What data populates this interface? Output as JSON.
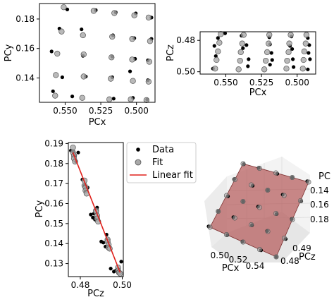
{
  "chart_data": [
    {
      "type": "scatter",
      "xlabel": "PCx",
      "ylabel": "PCy",
      "x_inverted": true,
      "xlim": [
        0.568,
        0.487
      ],
      "ylim": [
        0.1235,
        0.1905
      ],
      "xticks": [
        0.55,
        0.525,
        0.5
      ],
      "xtick_labels": [
        "0.550",
        "0.525",
        "0.500"
      ],
      "yticks": [
        0.14,
        0.16,
        0.18
      ],
      "ytick_labels": [
        "0.14",
        "0.16",
        "0.18"
      ],
      "series": [
        {
          "marker": "black-dot",
          "x": [
            0.5485,
            0.5285,
            0.5145,
            0.5005,
            0.4895,
            0.554,
            0.5385,
            0.5165,
            0.5015,
            0.4895,
            0.5595,
            0.5375,
            0.517,
            0.501,
            0.492,
            0.552,
            0.5355,
            0.517,
            0.5045,
            0.492,
            0.5585,
            0.545,
            0.516,
            0.5025,
            0.4925
          ],
          "y": [
            0.1865,
            0.186,
            0.1845,
            0.1838,
            0.181,
            0.1735,
            0.173,
            0.169,
            0.167,
            0.1665,
            0.158,
            0.155,
            0.1545,
            0.153,
            0.152,
            0.1405,
            0.141,
            0.1405,
            0.1445,
            0.1385,
            0.131,
            0.1275,
            0.126,
            0.1265,
            0.1255
          ]
        },
        {
          "marker": "gray-circle",
          "x": [
            0.551,
            0.53,
            0.5155,
            0.5015,
            0.4915,
            0.5525,
            0.5375,
            0.517,
            0.503,
            0.4905,
            0.5555,
            0.537,
            0.5175,
            0.503,
            0.491,
            0.5565,
            0.537,
            0.518,
            0.5025,
            0.4915,
            0.557,
            0.538,
            0.519,
            0.504,
            0.493
          ],
          "y": [
            0.188,
            0.1855,
            0.184,
            0.1825,
            0.181,
            0.1715,
            0.169,
            0.168,
            0.1665,
            0.165,
            0.1565,
            0.156,
            0.154,
            0.1525,
            0.151,
            0.142,
            0.141,
            0.1395,
            0.138,
            0.1375,
            0.128,
            0.1265,
            0.1255,
            0.1255,
            0.125
          ]
        }
      ]
    },
    {
      "type": "scatter",
      "xlabel": "PCx",
      "ylabel": "PCz",
      "x_inverted": true,
      "y_inverted": true,
      "xlim": [
        0.568,
        0.487
      ],
      "ylim": [
        0.5015,
        0.4745
      ],
      "xticks": [
        0.55,
        0.525,
        0.5
      ],
      "xtick_labels": [
        "0.550",
        "0.525",
        "0.500"
      ],
      "yticks": [
        0.48,
        0.5
      ],
      "ytick_labels": [
        "0.48",
        "0.50"
      ],
      "series": [
        {
          "marker": "black-dot",
          "x": [
            0.5505,
            0.5555,
            0.558,
            0.557,
            0.559,
            0.539,
            0.5355,
            0.538,
            0.534,
            0.5345,
            0.5195,
            0.519,
            0.518,
            0.5175,
            0.519,
            0.504,
            0.505,
            0.5035,
            0.503,
            0.5025,
            0.4925,
            0.4915,
            0.492,
            0.491,
            0.4925
          ],
          "y": [
            0.4755,
            0.4785,
            0.4835,
            0.49,
            0.498,
            0.477,
            0.483,
            0.485,
            0.492,
            0.4965,
            0.478,
            0.4825,
            0.488,
            0.4925,
            0.4955,
            0.4775,
            0.4835,
            0.4855,
            0.492,
            0.497,
            0.4785,
            0.483,
            0.488,
            0.492,
            0.4985
          ]
        },
        {
          "marker": "gray-circle",
          "x": [
            0.5535,
            0.5545,
            0.5555,
            0.5565,
            0.5575,
            0.5375,
            0.5385,
            0.5395,
            0.54,
            0.541,
            0.5195,
            0.52,
            0.521,
            0.522,
            0.523,
            0.5045,
            0.5055,
            0.506,
            0.507,
            0.5075,
            0.4935,
            0.494,
            0.495,
            0.4955,
            0.496
          ],
          "y": [
            0.476,
            0.4815,
            0.487,
            0.4925,
            0.498,
            0.4765,
            0.482,
            0.4875,
            0.493,
            0.4985,
            0.4765,
            0.482,
            0.4875,
            0.493,
            0.4985,
            0.4765,
            0.482,
            0.4875,
            0.493,
            0.498,
            0.4765,
            0.482,
            0.487,
            0.4925,
            0.498
          ]
        }
      ]
    },
    {
      "type": "scatter",
      "xlabel": "PCz",
      "ylabel": "PCy",
      "xlim": [
        0.4743,
        0.5005
      ],
      "ylim": [
        0.1235,
        0.1905
      ],
      "xticks": [
        0.48,
        0.5
      ],
      "xtick_labels": [
        "0.48",
        "0.50"
      ],
      "yticks": [
        0.13,
        0.14,
        0.15,
        0.16,
        0.17,
        0.18,
        0.19
      ],
      "ytick_labels": [
        "0.13",
        "0.14",
        "0.15",
        "0.16",
        "0.17",
        "0.18",
        "0.19"
      ],
      "legend": {
        "position": "right-outside-top",
        "entries": [
          "Data",
          "Fit",
          "Linear fit"
        ]
      },
      "series": [
        {
          "name": "Data",
          "marker": "black-dot",
          "x": [
            0.4755,
            0.4765,
            0.477,
            0.4775,
            0.478,
            0.479,
            0.481,
            0.482,
            0.4825,
            0.483,
            0.4835,
            0.485,
            0.486,
            0.4865,
            0.487,
            0.488,
            0.49,
            0.491,
            0.492,
            0.4925,
            0.4945,
            0.496,
            0.497,
            0.498,
            0.4995
          ],
          "y": [
            0.1865,
            0.186,
            0.1845,
            0.1838,
            0.181,
            0.1855,
            0.172,
            0.169,
            0.1665,
            0.167,
            0.168,
            0.1545,
            0.153,
            0.155,
            0.152,
            0.158,
            0.141,
            0.1405,
            0.1385,
            0.1445,
            0.1275,
            0.126,
            0.1265,
            0.1255,
            0.131
          ]
        },
        {
          "name": "Fit",
          "marker": "gray-circle",
          "x": [
            0.4765,
            0.4765,
            0.477,
            0.477,
            0.4775,
            0.482,
            0.482,
            0.4825,
            0.4825,
            0.483,
            0.4875,
            0.4875,
            0.488,
            0.488,
            0.4885,
            0.493,
            0.493,
            0.4935,
            0.4935,
            0.494,
            0.498,
            0.498,
            0.4985,
            0.4985,
            0.499
          ],
          "y": [
            0.188,
            0.1855,
            0.184,
            0.1825,
            0.181,
            0.1715,
            0.169,
            0.168,
            0.1665,
            0.165,
            0.1565,
            0.156,
            0.154,
            0.1525,
            0.151,
            0.142,
            0.141,
            0.1395,
            0.138,
            0.1375,
            0.128,
            0.1265,
            0.1255,
            0.1255,
            0.125
          ]
        },
        {
          "name": "Linear fit",
          "marker": "red-line",
          "x": [
            0.4765,
            0.499
          ],
          "y": [
            0.1855,
            0.1255
          ]
        }
      ]
    },
    {
      "type": "scatter",
      "projection": "3d",
      "xlabel": "PCx",
      "ylabel": "PCz",
      "zlabel": "PC",
      "xtick_labels": [
        "0.50",
        "0.52",
        "0.54"
      ],
      "ytick_labels": [
        "0.48",
        "0.49"
      ],
      "ztick_labels": [
        "0.14",
        "0.16",
        "0.18"
      ],
      "surface": "linear-fit-plane",
      "colors": {
        "plane": "#b55b5b",
        "plane_edge": "#7a2e2e",
        "pane": "#f2f2f2"
      }
    }
  ]
}
